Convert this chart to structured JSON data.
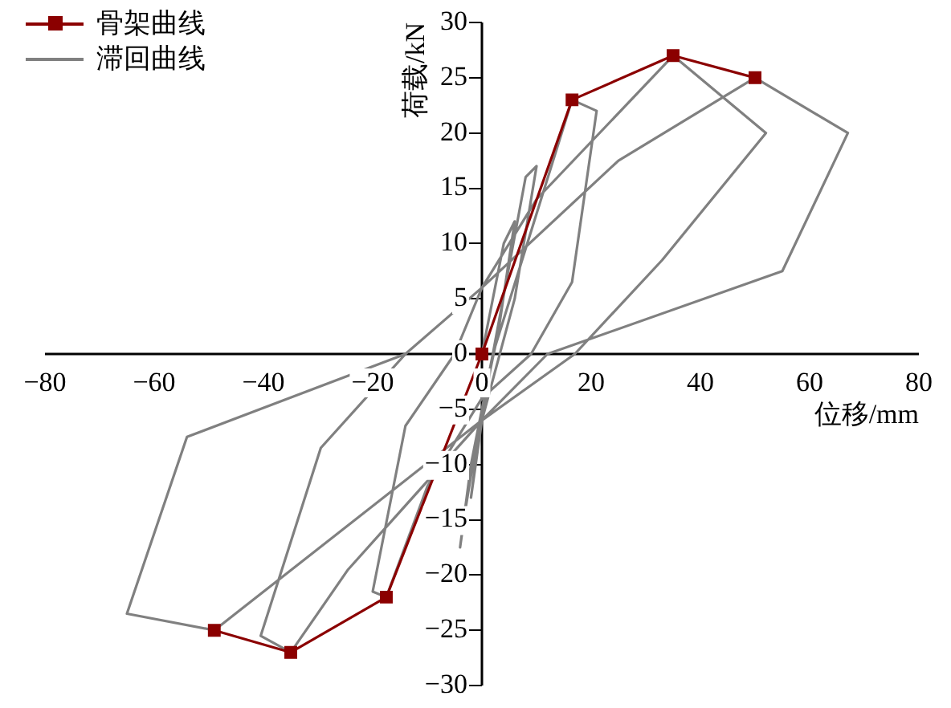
{
  "chart_data": {
    "type": "line",
    "xlabel": "位移/mm",
    "ylabel": "荷载/kN",
    "xlim": [
      -80,
      80
    ],
    "xticks": [
      -80,
      -60,
      -40,
      -20,
      0,
      20,
      40,
      60,
      80
    ],
    "ylim": [
      -30,
      30
    ],
    "yticks": [
      -30,
      -25,
      -20,
      -15,
      -10,
      -5,
      0,
      5,
      10,
      15,
      20,
      25,
      30
    ],
    "grid": false,
    "legend": "top left",
    "series": [
      {
        "name": "骨架曲线",
        "color": "#8b0000",
        "marker": "square",
        "x": [
          -49,
          -35,
          -17.5,
          0,
          16.5,
          35,
          50
        ],
        "values": [
          -25,
          -27,
          -22,
          0,
          23,
          27,
          25
        ]
      },
      {
        "name": "滞回曲线",
        "color": "#808080",
        "marker": "none",
        "x": [
          0,
          4,
          6,
          3,
          0,
          -3,
          -4,
          -2,
          2,
          8,
          10,
          6,
          0,
          -2,
          -1,
          2,
          16.5,
          21,
          16.5,
          9,
          0,
          -10,
          -17.5,
          -20,
          -14,
          -5,
          0,
          10,
          35,
          52,
          33,
          17,
          0,
          -24.5,
          -35,
          -40.5,
          -29.5,
          -14,
          0,
          25,
          50,
          67,
          55,
          12,
          0,
          -49,
          -65,
          -54,
          -14,
          0
        ],
        "values": [
          0,
          10,
          12,
          2,
          -5,
          -14,
          -17.5,
          -10,
          0,
          16,
          17,
          5,
          -6,
          -13,
          -9,
          0,
          23,
          22,
          6.5,
          0,
          -4,
          -12,
          -22,
          -21.5,
          -6.5,
          0,
          6,
          14,
          27,
          20,
          8.5,
          0,
          -6,
          -19.5,
          -27,
          -25.5,
          -8.5,
          0,
          6,
          17.5,
          25,
          20,
          7.5,
          0,
          -6,
          -25,
          -23.5,
          -7.5,
          0,
          6
        ]
      }
    ]
  }
}
